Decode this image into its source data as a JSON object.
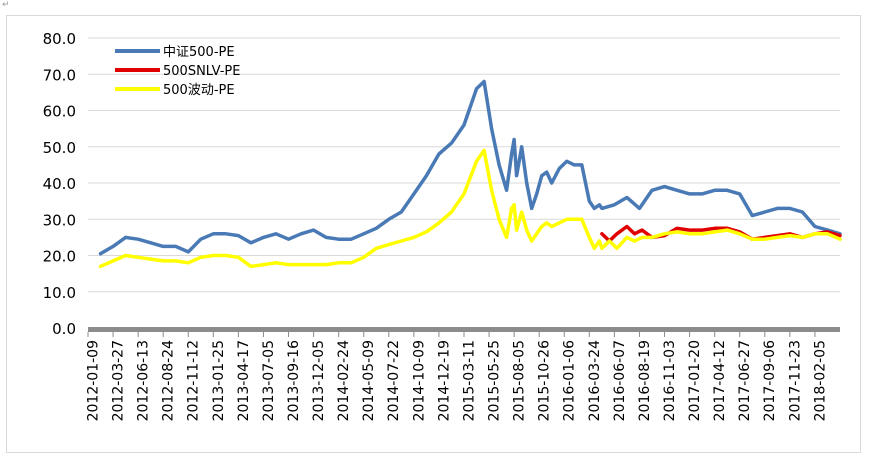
{
  "paragraph_mark": "↵",
  "chart_data": {
    "type": "line",
    "title": "",
    "xlabel": "",
    "ylabel": "",
    "ylim": [
      0,
      80
    ],
    "yticks": [
      "0.0",
      "10.0",
      "20.0",
      "30.0",
      "40.0",
      "50.0",
      "60.0",
      "70.0",
      "80.0"
    ],
    "grid": "horizontal",
    "legend_position": "top-left",
    "x_tick_labels": [
      "2012-01-09",
      "2012-03-27",
      "2012-06-13",
      "2012-08-24",
      "2012-11-12",
      "2013-01-25",
      "2013-04-17",
      "2013-07-05",
      "2013-09-16",
      "2013-12-05",
      "2014-02-24",
      "2014-05-09",
      "2014-07-22",
      "2014-10-09",
      "2014-12-19",
      "2015-03-11",
      "2015-05-25",
      "2015-08-05",
      "2015-10-26",
      "2016-01-06",
      "2016-03-24",
      "2016-06-07",
      "2016-08-19",
      "2016-11-03",
      "2017-01-20",
      "2017-04-12",
      "2017-06-27",
      "2017-09-06",
      "2017-11-23",
      "2018-02-05"
    ],
    "series": [
      {
        "name": "中证500-PE",
        "color": "#4a7ab5",
        "x": [
          0,
          0.5,
          1,
          1.5,
          2,
          2.5,
          3,
          3.5,
          4,
          4.5,
          5,
          5.5,
          6,
          6.5,
          7,
          7.5,
          8,
          8.5,
          9,
          9.5,
          10,
          10.5,
          11,
          11.5,
          12,
          12.5,
          13,
          13.5,
          14,
          14.5,
          15,
          15.3,
          15.6,
          15.9,
          16.2,
          16.4,
          16.5,
          16.6,
          16.8,
          17.0,
          17.2,
          17.4,
          17.6,
          17.8,
          18.0,
          18.3,
          18.6,
          18.9,
          19.2,
          19.5,
          19.7,
          19.9,
          20.0,
          20.5,
          21.0,
          21.5,
          22.0,
          22.5,
          23,
          23.5,
          24,
          24.5,
          25,
          25.5,
          26,
          26.5,
          27,
          27.5,
          28,
          28.5,
          29,
          29.5
        ],
        "y": [
          20.5,
          22.5,
          25,
          24.5,
          23.5,
          22.5,
          22.5,
          21,
          24.5,
          26,
          26,
          25.5,
          23.5,
          25,
          26,
          24.5,
          26,
          27,
          25,
          24.5,
          24.5,
          26,
          27.5,
          30,
          32,
          37,
          42,
          48,
          51,
          56,
          66,
          68,
          55,
          45,
          38,
          48,
          52,
          42,
          50,
          40,
          33,
          37,
          42,
          43,
          40,
          44,
          46,
          45,
          45,
          35,
          33,
          34,
          33,
          34,
          36,
          33,
          38,
          39,
          38,
          37,
          37,
          38,
          38,
          37,
          31,
          32,
          33,
          33,
          32,
          28,
          27,
          26
        ]
      },
      {
        "name": "500SNLV-PE",
        "color": "#e00000",
        "x": [
          20.0,
          20.3,
          20.6,
          21.0,
          21.3,
          21.6,
          22.0,
          22.5,
          23,
          23.5,
          24,
          24.5,
          25,
          25.5,
          26,
          26.5,
          27,
          27.5,
          28,
          28.5,
          29,
          29.5
        ],
        "y": [
          26,
          24,
          26,
          28,
          26,
          27,
          25,
          25.5,
          27.5,
          27,
          27,
          27.5,
          27.5,
          26.5,
          24.5,
          25,
          25.5,
          26,
          25,
          26,
          26.5,
          25.5
        ]
      },
      {
        "name": "500波动-PE",
        "color": "#ffff00",
        "x": [
          0,
          0.5,
          1,
          1.5,
          2,
          2.5,
          3,
          3.5,
          4,
          4.5,
          5,
          5.5,
          6,
          6.5,
          7,
          7.5,
          8,
          8.5,
          9,
          9.5,
          10,
          10.5,
          11,
          11.5,
          12,
          12.5,
          13,
          13.5,
          14,
          14.5,
          15,
          15.3,
          15.6,
          15.9,
          16.2,
          16.4,
          16.5,
          16.6,
          16.8,
          17.0,
          17.2,
          17.4,
          17.6,
          17.8,
          18.0,
          18.3,
          18.6,
          18.9,
          19.2,
          19.5,
          19.7,
          19.9,
          20.0,
          20.3,
          20.6,
          21.0,
          21.3,
          21.6,
          22.0,
          22.5,
          23,
          23.5,
          24,
          24.5,
          25,
          25.5,
          26,
          26.5,
          27,
          27.5,
          28,
          28.5,
          29,
          29.5
        ],
        "y": [
          17,
          18.5,
          20,
          19.5,
          19,
          18.5,
          18.5,
          18,
          19.5,
          20,
          20,
          19.5,
          17,
          17.5,
          18,
          17.5,
          17.5,
          17.5,
          17.5,
          18,
          18,
          19.5,
          22,
          23,
          24,
          25,
          26.5,
          29,
          32,
          37,
          46,
          49,
          38,
          30,
          25,
          33,
          34,
          27,
          32,
          27,
          24,
          26,
          28,
          29,
          28,
          29,
          30,
          30,
          30,
          25,
          22,
          24,
          22,
          24,
          22,
          25,
          24,
          25,
          25,
          26,
          26.5,
          26,
          26,
          26.5,
          27,
          26,
          24.5,
          24.5,
          25,
          25.5,
          25,
          26,
          26,
          24.5
        ]
      }
    ]
  }
}
